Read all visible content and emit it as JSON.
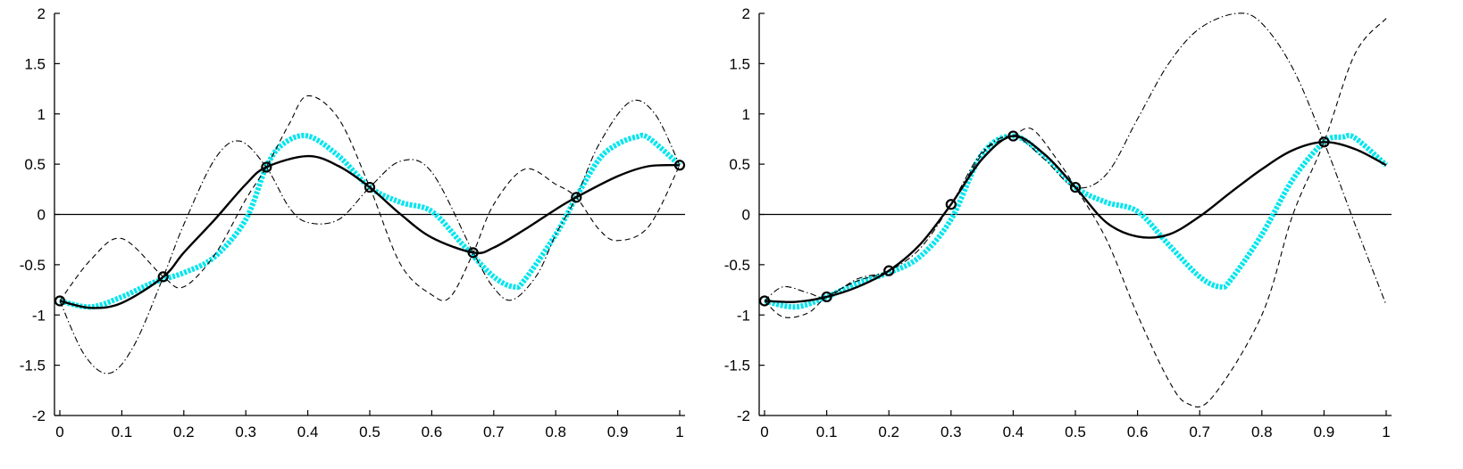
{
  "chart_data": [
    {
      "type": "line",
      "title": "",
      "xlabel": "",
      "ylabel": "",
      "xlim": [
        0,
        1
      ],
      "ylim": [
        -2,
        2
      ],
      "xticks": [
        "0",
        "0.1",
        "0.2",
        "0.3",
        "0.4",
        "0.5",
        "0.6",
        "0.7",
        "0.8",
        "0.9",
        "1"
      ],
      "yticks": [
        "-2",
        "-1.5",
        "-1",
        "-0.5",
        "0",
        "0.5",
        "1",
        "1.5",
        "2"
      ],
      "grid": false,
      "series": [
        {
          "style": "cyan-dotted",
          "color": "#00e5ee",
          "x": [
            0,
            0.05,
            0.1,
            0.15,
            0.2,
            0.25,
            0.3,
            0.333,
            0.36,
            0.4,
            0.45,
            0.5,
            0.55,
            0.6,
            0.65,
            0.7,
            0.733,
            0.75,
            0.8,
            0.833,
            0.87,
            0.9,
            0.93,
            0.95,
            1.0
          ],
          "y": [
            -0.86,
            -0.92,
            -0.82,
            -0.68,
            -0.58,
            -0.42,
            -0.05,
            0.47,
            0.7,
            0.78,
            0.58,
            0.27,
            0.12,
            0.03,
            -0.3,
            -0.62,
            -0.72,
            -0.65,
            -0.2,
            0.17,
            0.55,
            0.7,
            0.77,
            0.76,
            0.49
          ]
        },
        {
          "style": "solid",
          "color": "#000000",
          "x": [
            0,
            0.05,
            0.1,
            0.167,
            0.2,
            0.25,
            0.3,
            0.333,
            0.4,
            0.45,
            0.5,
            0.55,
            0.6,
            0.667,
            0.7,
            0.75,
            0.8,
            0.833,
            0.9,
            0.95,
            1.0
          ],
          "y": [
            -0.86,
            -0.93,
            -0.88,
            -0.62,
            -0.38,
            -0.05,
            0.3,
            0.47,
            0.58,
            0.48,
            0.27,
            0.0,
            -0.23,
            -0.38,
            -0.33,
            -0.15,
            0.05,
            0.17,
            0.38,
            0.48,
            0.49
          ]
        },
        {
          "style": "dashed",
          "color": "#000000",
          "x": [
            0,
            0.05,
            0.1,
            0.167,
            0.2,
            0.25,
            0.3,
            0.333,
            0.37,
            0.4,
            0.45,
            0.5,
            0.55,
            0.6,
            0.63,
            0.667,
            0.7,
            0.75,
            0.8,
            0.833,
            0.87,
            0.9,
            0.95,
            1.0
          ],
          "y": [
            -0.86,
            -0.45,
            -0.24,
            -0.62,
            -0.72,
            -0.4,
            0.15,
            0.47,
            0.9,
            1.18,
            0.95,
            0.27,
            -0.5,
            -0.8,
            -0.82,
            -0.38,
            0.1,
            0.45,
            0.3,
            0.17,
            -0.15,
            -0.26,
            -0.12,
            0.49
          ]
        },
        {
          "style": "dashdot",
          "color": "#000000",
          "x": [
            0,
            0.04,
            0.08,
            0.12,
            0.167,
            0.2,
            0.25,
            0.29,
            0.333,
            0.37,
            0.4,
            0.45,
            0.5,
            0.55,
            0.6,
            0.667,
            0.7,
            0.73,
            0.77,
            0.8,
            0.833,
            0.87,
            0.92,
            0.96,
            1.0
          ],
          "y": [
            -0.86,
            -1.4,
            -1.58,
            -1.3,
            -0.62,
            -0.1,
            0.55,
            0.73,
            0.47,
            0.07,
            -0.08,
            -0.05,
            0.27,
            0.53,
            0.42,
            -0.38,
            -0.73,
            -0.85,
            -0.6,
            -0.2,
            0.17,
            0.7,
            1.12,
            1.0,
            0.49
          ]
        }
      ],
      "markers": {
        "x": [
          0,
          0.1667,
          0.3333,
          0.5,
          0.6667,
          0.8333,
          1.0
        ],
        "y": [
          -0.86,
          -0.62,
          0.47,
          0.27,
          -0.38,
          0.17,
          0.49
        ]
      }
    },
    {
      "type": "line",
      "title": "",
      "xlabel": "",
      "ylabel": "",
      "xlim": [
        0,
        1
      ],
      "ylim": [
        -2,
        2
      ],
      "xticks": [
        "0",
        "0.1",
        "0.2",
        "0.3",
        "0.4",
        "0.5",
        "0.6",
        "0.7",
        "0.8",
        "0.9",
        "1"
      ],
      "yticks": [
        "-2",
        "-1.5",
        "-1",
        "-0.5",
        "0",
        "0.5",
        "1",
        "1.5",
        "2"
      ],
      "grid": false,
      "series": [
        {
          "style": "cyan-dotted",
          "color": "#00e5ee",
          "x": [
            0,
            0.05,
            0.1,
            0.15,
            0.2,
            0.25,
            0.3,
            0.35,
            0.4,
            0.45,
            0.5,
            0.55,
            0.6,
            0.65,
            0.7,
            0.733,
            0.75,
            0.8,
            0.85,
            0.9,
            0.93,
            0.95,
            1.0
          ],
          "y": [
            -0.86,
            -0.92,
            -0.82,
            -0.68,
            -0.58,
            -0.42,
            -0.05,
            0.6,
            0.78,
            0.58,
            0.27,
            0.12,
            0.03,
            -0.3,
            -0.62,
            -0.72,
            -0.65,
            -0.2,
            0.35,
            0.72,
            0.77,
            0.76,
            0.49
          ]
        },
        {
          "style": "solid",
          "color": "#000000",
          "x": [
            0,
            0.05,
            0.1,
            0.15,
            0.2,
            0.25,
            0.3,
            0.35,
            0.4,
            0.45,
            0.5,
            0.55,
            0.6,
            0.65,
            0.7,
            0.75,
            0.8,
            0.85,
            0.9,
            0.95,
            1.0
          ],
          "y": [
            -0.86,
            -0.87,
            -0.82,
            -0.72,
            -0.56,
            -0.3,
            0.1,
            0.55,
            0.78,
            0.6,
            0.27,
            -0.08,
            -0.22,
            -0.2,
            -0.02,
            0.22,
            0.45,
            0.64,
            0.72,
            0.65,
            0.49
          ]
        },
        {
          "style": "dashed",
          "color": "#000000",
          "x": [
            0,
            0.03,
            0.07,
            0.1,
            0.15,
            0.2,
            0.25,
            0.3,
            0.35,
            0.38,
            0.4,
            0.43,
            0.47,
            0.5,
            0.55,
            0.6,
            0.65,
            0.68,
            0.72,
            0.8,
            0.85,
            0.9,
            0.95,
            1.0
          ],
          "y": [
            -0.86,
            -1.02,
            -0.98,
            -0.82,
            -0.66,
            -0.56,
            -0.3,
            0.1,
            0.6,
            0.74,
            0.78,
            0.85,
            0.55,
            0.27,
            -0.25,
            -1.0,
            -1.65,
            -1.88,
            -1.82,
            -1.0,
            0.0,
            0.72,
            1.6,
            1.95
          ]
        },
        {
          "style": "dashdot",
          "color": "#000000",
          "x": [
            0,
            0.03,
            0.07,
            0.1,
            0.15,
            0.2,
            0.25,
            0.3,
            0.35,
            0.4,
            0.45,
            0.5,
            0.55,
            0.6,
            0.65,
            0.7,
            0.76,
            0.8,
            0.85,
            0.9,
            0.95,
            1.0
          ],
          "y": [
            -0.86,
            -0.72,
            -0.78,
            -0.82,
            -0.64,
            -0.56,
            -0.34,
            0.1,
            0.62,
            0.78,
            0.55,
            0.27,
            0.4,
            0.95,
            1.5,
            1.85,
            2.0,
            1.9,
            1.45,
            0.72,
            -0.1,
            -0.9
          ]
        }
      ],
      "markers": {
        "x": [
          0,
          0.1,
          0.2,
          0.3,
          0.4,
          0.5,
          0.9
        ],
        "y": [
          -0.86,
          -0.82,
          -0.56,
          0.1,
          0.78,
          0.27,
          0.72
        ]
      }
    }
  ]
}
